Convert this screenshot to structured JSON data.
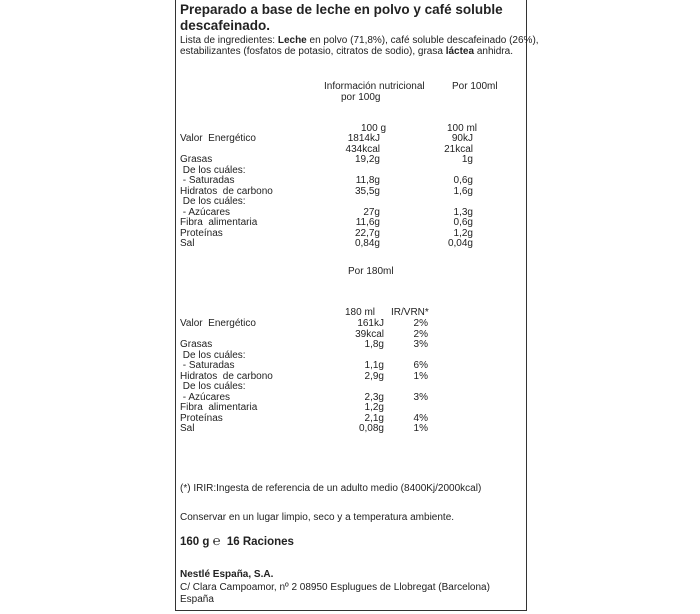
{
  "title_line1": "Preparado a base de leche en polvo y café soluble",
  "title_line2": "descafeinado.",
  "ingredients": {
    "prefix": "Lista de ingredientes: ",
    "bold1": "Leche",
    "mid1": " en polvo (71,8%), café soluble descafeinado (26%),",
    "line2_pre": "estabilizantes (fosfatos de potasio, citratos de sodio), grasa ",
    "bold2": "láctea",
    "line2_post": " anhidra."
  },
  "table1": {
    "head_col1_line1": "Información nutricional",
    "head_col1_line2": "por 100g",
    "head_col2": "Por 100ml",
    "unit_col1": "100 g",
    "unit_col2": "100 ml",
    "rows": [
      {
        "label": "Valor  Energético",
        "v1": "1814kJ",
        "v2": "90kJ"
      },
      {
        "label": "",
        "v1": "434kcal",
        "v2": "21kcal"
      },
      {
        "label": "Grasas",
        "v1": "19,2g",
        "v2": "1g"
      },
      {
        "label": " De los cuáles:",
        "v1": "",
        "v2": ""
      },
      {
        "label": " - Saturadas",
        "v1": "11,8g",
        "v2": "0,6g"
      },
      {
        "label": "Hidratos  de carbono",
        "v1": "35,5g",
        "v2": "1,6g"
      },
      {
        "label": " De los cuáles:",
        "v1": "",
        "v2": ""
      },
      {
        "label": " - Azúcares",
        "v1": "27g",
        "v2": "1,3g"
      },
      {
        "label": "Fibra  alimentaria",
        "v1": "11,6g",
        "v2": "0,6g"
      },
      {
        "label": "Proteínas",
        "v1": "22,7g",
        "v2": "1,2g"
      },
      {
        "label": "Sal",
        "v1": "0,84g",
        "v2": "0,04g"
      }
    ]
  },
  "table2": {
    "heading": "Por 180ml",
    "unit_col1": "180 ml",
    "unit_col2": "IR/VRN*",
    "rows": [
      {
        "label": "Valor  Energético",
        "v1": "161kJ",
        "v2": "2%"
      },
      {
        "label": "",
        "v1": "39kcal",
        "v2": "2%"
      },
      {
        "label": "Grasas",
        "v1": "1,8g",
        "v2": "3%"
      },
      {
        "label": " De los cuáles:",
        "v1": "",
        "v2": ""
      },
      {
        "label": " - Saturadas",
        "v1": "1,1g",
        "v2": "6%"
      },
      {
        "label": "Hidratos  de carbono",
        "v1": "2,9g",
        "v2": "1%"
      },
      {
        "label": " De los cuáles:",
        "v1": "",
        "v2": ""
      },
      {
        "label": " - Azúcares",
        "v1": "2,3g",
        "v2": "3%"
      },
      {
        "label": "Fibra  alimentaria",
        "v1": "1,2g",
        "v2": ""
      },
      {
        "label": "Proteínas",
        "v1": "2,1g",
        "v2": "4%"
      },
      {
        "label": "Sal",
        "v1": "0,08g",
        "v2": "1%"
      }
    ]
  },
  "footnote": "(*) IRIR:Ingesta de referencia de un adulto medio (8400Kj/2000kcal)",
  "storage": "Conservar en un lugar limpio, seco y a temperatura ambiente.",
  "weight": "160 g",
  "estimated_sign": "℮",
  "servings": "16 Raciones",
  "company": "Nestlé España, S.A.",
  "address": "C/ Clara Campoamor, nº 2 08950 Esplugues de Llobregat (Barcelona)",
  "country": "España"
}
